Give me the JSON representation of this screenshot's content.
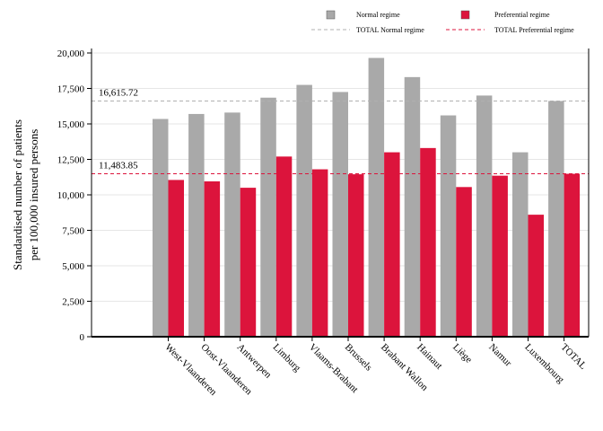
{
  "colors": {
    "normal": "#a9a9a9",
    "preferential": "#dc143c",
    "normal_line": "#b0b0b0",
    "preferential_line": "#dc143c",
    "grid": "#e6e6e6"
  },
  "legend": {
    "normal": "Normal regime",
    "preferential": "Preferential regime",
    "total_normal": "TOTAL Normal regime",
    "total_preferential": "TOTAL Preferential regime"
  },
  "chart_data": {
    "type": "bar",
    "ylabel_line1": "Standardised number of patients",
    "ylabel_line2": "per 100,000 insured persons",
    "ylim": [
      0,
      20000
    ],
    "yticks": [
      "0",
      "2,500",
      "5,000",
      "7,500",
      "10,000",
      "12,500",
      "15,000",
      "17,500",
      "20,000"
    ],
    "ytick_values": [
      0,
      2500,
      5000,
      7500,
      10000,
      12500,
      15000,
      17500,
      20000
    ],
    "grid": true,
    "legend_position": "top-right",
    "categories": [
      "West-Vlaanderen",
      "Oost-Vlaanderen",
      "Antwerpen",
      "Limburg",
      "Vlaams-Brabant",
      "Brussels",
      "Brabant Wallon",
      "Hainaut",
      "Liège",
      "Namur",
      "Luxembourg",
      "TOTAL"
    ],
    "series": [
      {
        "name": "Normal regime",
        "values": [
          15350,
          15700,
          15800,
          16850,
          17750,
          17250,
          19650,
          18300,
          15600,
          17000,
          13000,
          16615.72
        ]
      },
      {
        "name": "Preferential regime",
        "values": [
          11050,
          10950,
          10500,
          12700,
          11800,
          11450,
          13000,
          13300,
          10550,
          11350,
          8600,
          11483.85
        ]
      }
    ],
    "reference_lines": [
      {
        "name": "TOTAL Normal regime",
        "value": 16615.72,
        "label": "16,615.72"
      },
      {
        "name": "TOTAL Preferential regime",
        "value": 11483.85,
        "label": "11,483.85"
      }
    ]
  }
}
